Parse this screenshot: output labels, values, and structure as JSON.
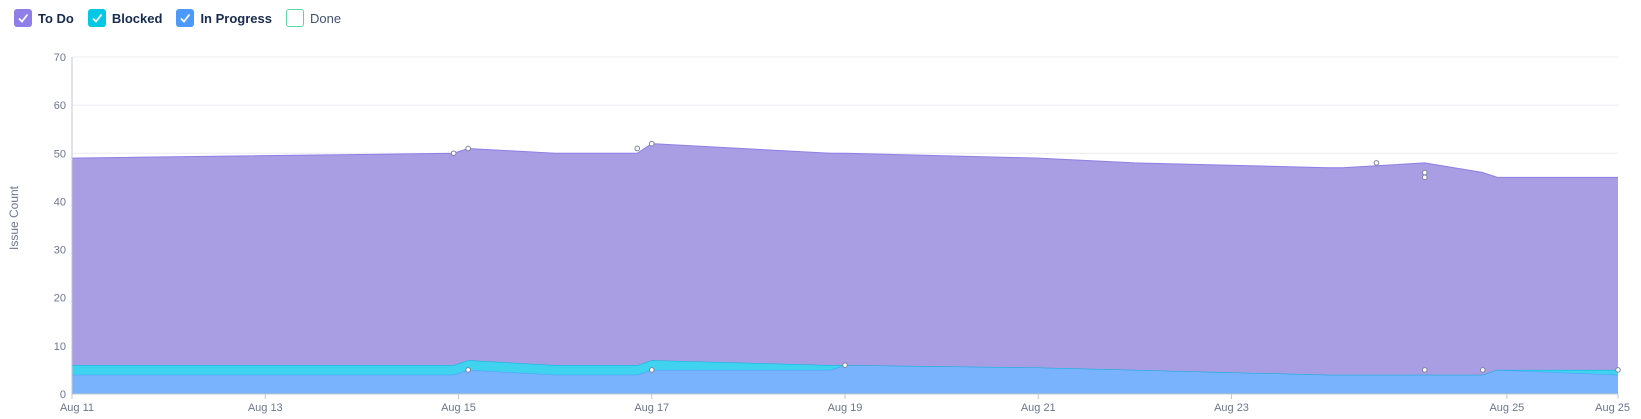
{
  "legend": [
    {
      "label": "To Do",
      "color": "#8f7ee7",
      "checked": true
    },
    {
      "label": "Blocked",
      "color": "#00c7e6",
      "checked": true
    },
    {
      "label": "In Progress",
      "color": "#4c9aff",
      "checked": true
    },
    {
      "label": "Done",
      "color": "#57d9a3",
      "checked": false
    }
  ],
  "chart_data": {
    "type": "area",
    "stacked": true,
    "ylabel": "Issue Count",
    "ylim": [
      0,
      70
    ],
    "yticks": [
      0,
      10,
      20,
      30,
      40,
      50,
      60,
      70
    ],
    "xlim": [
      "Aug 11",
      "Aug 25"
    ],
    "xticks": [
      "Aug 11",
      "Aug 13",
      "Aug 15",
      "Aug 17",
      "Aug 19",
      "Aug 21",
      "Aug 23",
      "Aug 25",
      "Aug 25"
    ],
    "grid": true,
    "x": [
      0,
      3.95,
      4.1,
      5,
      5.85,
      6,
      7.85,
      8,
      10,
      11,
      13,
      13.15,
      14,
      14.6,
      14.75,
      16.0
    ],
    "series": [
      {
        "name": "In Progress",
        "color": "#4c9aff",
        "values": [
          4,
          4,
          5,
          4,
          4,
          5,
          5,
          6,
          5.5,
          5,
          4,
          4,
          4,
          4,
          5,
          4
        ]
      },
      {
        "name": "Blocked",
        "color": "#00c7e6",
        "values": [
          2,
          2,
          2,
          2,
          2,
          2,
          1,
          0,
          0,
          0,
          0,
          0,
          0,
          0,
          0,
          1
        ]
      },
      {
        "name": "To Do",
        "color": "#8f7ee7",
        "values": [
          43,
          44,
          44,
          44,
          44,
          45,
          44,
          44,
          43.5,
          43,
          43,
          43,
          44,
          42,
          40,
          40
        ]
      }
    ],
    "markers": [
      {
        "x": 3.95,
        "y": 50
      },
      {
        "x": 4.1,
        "y": 51
      },
      {
        "x": 5.85,
        "y": 51
      },
      {
        "x": 6.0,
        "y": 52
      },
      {
        "x": 13.5,
        "y": 48
      },
      {
        "x": 14.0,
        "y": 46
      },
      {
        "x": 14.0,
        "y": 45
      },
      {
        "x": 4.1,
        "y": 5
      },
      {
        "x": 6.0,
        "y": 5
      },
      {
        "x": 8.0,
        "y": 6
      },
      {
        "x": 14.0,
        "y": 5
      },
      {
        "x": 14.6,
        "y": 5
      },
      {
        "x": 16.0,
        "y": 5
      }
    ]
  }
}
